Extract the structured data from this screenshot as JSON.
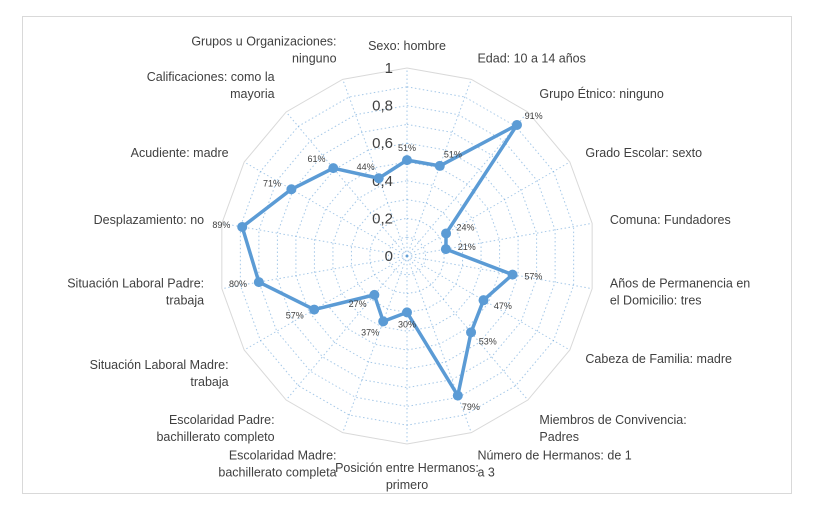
{
  "chart_data": {
    "type": "radar",
    "categories": [
      "Sexo: hombre",
      "Edad: 10 a 14 años",
      "Grupo Étnico: ninguno",
      "Grado Escolar: sexto",
      "Comuna: Fundadores",
      "Años de Permanencia en el Domicilio: tres",
      "Cabeza de Familia: madre",
      "Miembros de Convivencia: Padres",
      "Número de Hermanos: de 1 a 3",
      "Posición entre Hermanos: primero",
      "Escolaridad Madre: bachillerato completa",
      "Escolaridad Padre: bachillerato completo",
      "Situación Laboral Madre: trabaja",
      "Situación Laboral Padre: trabaja",
      "Desplazamiento: no",
      "Acudiente: madre",
      "Calificaciones: como la mayoria",
      "Grupos u Organizaciones: ninguno"
    ],
    "values": [
      0.51,
      0.51,
      0.91,
      0.24,
      0.21,
      0.57,
      0.47,
      0.53,
      0.79,
      0.3,
      0.37,
      0.27,
      0.57,
      0.8,
      0.89,
      0.71,
      0.61,
      0.44
    ],
    "data_labels": [
      "51%",
      "51%",
      "91%",
      "24%",
      "21%",
      "57%",
      "47%",
      "53%",
      "79%",
      "30%",
      "37%",
      "27%",
      "57%",
      "80%",
      "89%",
      "71%",
      "61%",
      "44%"
    ],
    "ticks": [
      "0",
      "0,2",
      "0,4",
      "0,6",
      "0,8",
      "1"
    ],
    "rlim": [
      0,
      1
    ],
    "grid": true,
    "series_color": "#5b9bd5",
    "grid_color": "#d9d9d9"
  }
}
